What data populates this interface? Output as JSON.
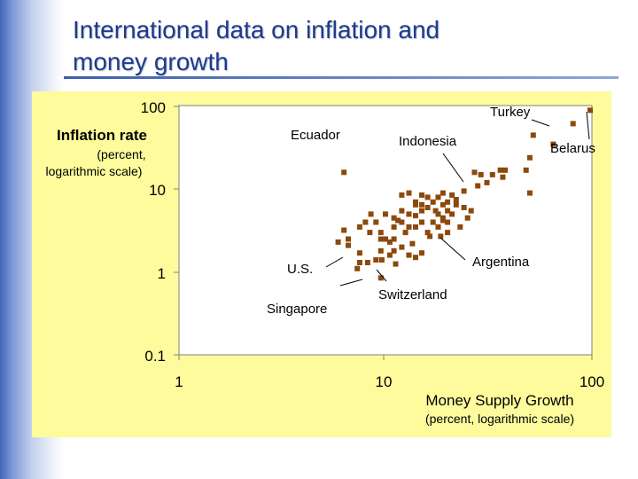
{
  "slide": {
    "title_line1": "International data on inflation and",
    "title_line2": "money growth"
  },
  "colors": {
    "title": "#1f3a8a",
    "panel": "#fdfb9c",
    "point": "#8b4a0b"
  },
  "chart_data": {
    "type": "scatter",
    "x_scale": "log",
    "y_scale": "log",
    "xlim": [
      1,
      100
    ],
    "ylim": [
      0.1,
      100
    ],
    "x_ticks": [
      "1",
      "10",
      "100"
    ],
    "y_ticks": [
      "100",
      "10",
      "1",
      "0.1"
    ],
    "xlabel": "Money Supply Growth",
    "xlabel_sub": "(percent, logarithmic scale)",
    "ylabel": "Inflation rate",
    "ylabel_sub1": "(percent,",
    "ylabel_sub2": "logarithmic scale)",
    "annotations": [
      {
        "label": "Turkey",
        "point": [
          81,
          62
        ]
      },
      {
        "label": "Ecuador",
        "point": [
          6.3,
          16
        ]
      },
      {
        "label": "Indonesia",
        "point": [
          22,
          7.5
        ]
      },
      {
        "label": "Belarus",
        "point": [
          98,
          90
        ]
      },
      {
        "label": "U.S.",
        "point": [
          7.5,
          1.3
        ]
      },
      {
        "label": "Singapore",
        "point": [
          9.5,
          0.85
        ]
      },
      {
        "label": "Switzerland",
        "point": [
          11.2,
          1.25
        ]
      },
      {
        "label": "Argentina",
        "point": [
          16.4,
          2.7
        ]
      }
    ],
    "points": [
      [
        98,
        90
      ],
      [
        81,
        62
      ],
      [
        52,
        45
      ],
      [
        65,
        35
      ],
      [
        50,
        24
      ],
      [
        48,
        17
      ],
      [
        38,
        17
      ],
      [
        27,
        16
      ],
      [
        29,
        15
      ],
      [
        33,
        15
      ],
      [
        36,
        17
      ],
      [
        37,
        14
      ],
      [
        50,
        9
      ],
      [
        31,
        12
      ],
      [
        28,
        11
      ],
      [
        24,
        9.5
      ],
      [
        22,
        7.5
      ],
      [
        21,
        8.5
      ],
      [
        20,
        7
      ],
      [
        22,
        6.5
      ],
      [
        24,
        6
      ],
      [
        26,
        5.5
      ],
      [
        19,
        9
      ],
      [
        18,
        8
      ],
      [
        16,
        8
      ],
      [
        15,
        8.5
      ],
      [
        14,
        7
      ],
      [
        13,
        9
      ],
      [
        12,
        8.5
      ],
      [
        17,
        7
      ],
      [
        16,
        6
      ],
      [
        15,
        5.5
      ],
      [
        14,
        6.5
      ],
      [
        13,
        5
      ],
      [
        12,
        5.5
      ],
      [
        11,
        4.5
      ],
      [
        10,
        5
      ],
      [
        11,
        3.5
      ],
      [
        12,
        4
      ],
      [
        13,
        3.5
      ],
      [
        14,
        3.5
      ],
      [
        15,
        4
      ],
      [
        16,
        3
      ],
      [
        17,
        4
      ],
      [
        18,
        5
      ],
      [
        19,
        4.5
      ],
      [
        20,
        4
      ],
      [
        20,
        3
      ],
      [
        18,
        3.5
      ],
      [
        9,
        4
      ],
      [
        8.5,
        5
      ],
      [
        9.5,
        3
      ],
      [
        10,
        2.5
      ],
      [
        11,
        2.5
      ],
      [
        12,
        2
      ],
      [
        13,
        1.6
      ],
      [
        14,
        1.5
      ],
      [
        15,
        1.7
      ],
      [
        16.4,
        2.7
      ],
      [
        11.5,
        4.2
      ],
      [
        12.5,
        3
      ],
      [
        17.5,
        5.5
      ],
      [
        19,
        6.5
      ],
      [
        21,
        5
      ],
      [
        23,
        3.5
      ],
      [
        25,
        4.5
      ],
      [
        18.5,
        2.7
      ],
      [
        9.5,
        2.5
      ],
      [
        8.4,
        3
      ],
      [
        8,
        4
      ],
      [
        7.5,
        3.5
      ],
      [
        9.5,
        1.8
      ],
      [
        10.5,
        1.6
      ],
      [
        11,
        1.8
      ],
      [
        9,
        1.4
      ],
      [
        14,
        4.8
      ],
      [
        15,
        6.5
      ],
      [
        19,
        4.2
      ],
      [
        20,
        5.5
      ],
      [
        13.5,
        2.2
      ],
      [
        10.5,
        2.3
      ],
      [
        7.5,
        1.7
      ],
      [
        8.2,
        1.3
      ],
      [
        7.3,
        1.1
      ],
      [
        9.6,
        1.4
      ],
      [
        11.2,
        1.25
      ],
      [
        5.9,
        2.3
      ],
      [
        6.3,
        3.2
      ],
      [
        6.6,
        2.5
      ],
      [
        6.6,
        2.1
      ],
      [
        6.3,
        16
      ],
      [
        7.5,
        1.3
      ],
      [
        9.5,
        0.85
      ]
    ]
  }
}
